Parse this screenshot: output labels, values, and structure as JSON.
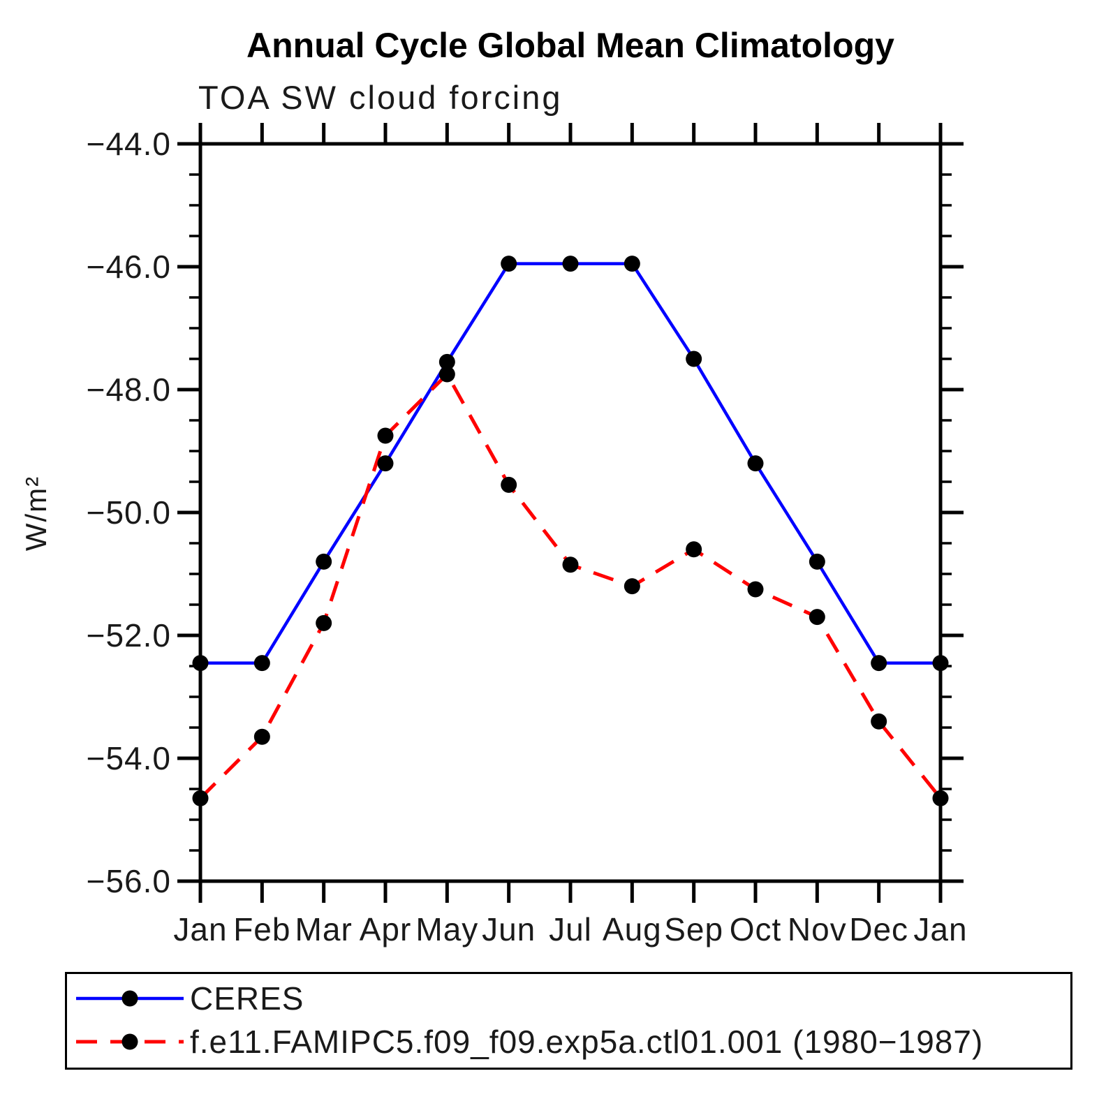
{
  "chart_data": {
    "type": "line",
    "title": "Annual Cycle Global Mean Climatology",
    "subtitle": "TOA SW cloud forcing",
    "ylabel": "W/m²",
    "xlabel": "",
    "ylim": [
      -56.0,
      -44.0
    ],
    "y_major_ticks": [
      -44.0,
      -46.0,
      -48.0,
      -50.0,
      -52.0,
      -54.0,
      -56.0
    ],
    "y_minor_step": 0.5,
    "categories": [
      "Jan",
      "Feb",
      "Mar",
      "Apr",
      "May",
      "Jun",
      "Jul",
      "Aug",
      "Sep",
      "Oct",
      "Nov",
      "Dec",
      "Jan"
    ],
    "grid": false,
    "legend_position": "bottom-left-box",
    "marker": "filled-circle",
    "marker_color": "#000000",
    "axis_color": "#000000",
    "series": [
      {
        "name": "CERES",
        "color": "#0000ff",
        "line_style": "solid",
        "values": [
          -52.45,
          -52.45,
          -50.8,
          -49.2,
          -47.55,
          -45.95,
          -45.95,
          -45.95,
          -47.5,
          -49.2,
          -50.8,
          -52.45,
          -52.45
        ]
      },
      {
        "name": "f.e11.FAMIPC5.f09_f09.exp5a.ctl01.001 (1980−1987)",
        "color": "#ff0000",
        "line_style": "dashed",
        "values": [
          -54.65,
          -53.65,
          -51.8,
          -48.75,
          -47.75,
          -49.55,
          -50.85,
          -51.2,
          -50.6,
          -51.25,
          -51.7,
          -53.4,
          -54.65
        ]
      }
    ]
  }
}
